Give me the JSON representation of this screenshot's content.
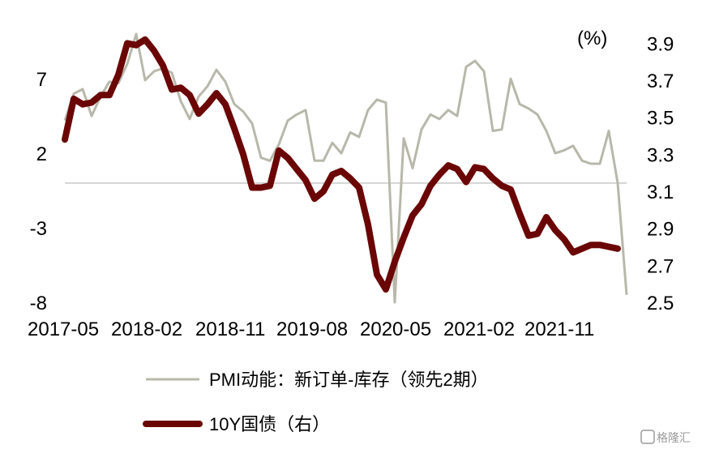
{
  "chart_data": {
    "type": "line",
    "unit_label": "(%)",
    "x_ticks": [
      "2017-05",
      "2018-02",
      "2018-11",
      "2019-08",
      "2020-05",
      "2021-02",
      "2021-11"
    ],
    "left_axis": {
      "ylim": [
        -8,
        10
      ],
      "ticks": [
        "7",
        "2",
        "-3",
        "-8"
      ]
    },
    "right_axis": {
      "ylim": [
        2.5,
        3.95
      ],
      "ticks": [
        "3.9",
        "3.7",
        "3.5",
        "3.3",
        "3.1",
        "2.9",
        "2.7",
        "2.5"
      ]
    },
    "baseline_value_left": 0,
    "series": [
      {
        "name": "PMI动能：新订单-库存（领先2期）",
        "axis": "left",
        "color": "#b8b8aa",
        "values": [
          4.2,
          6.0,
          6.3,
          4.5,
          5.8,
          6.8,
          6.7,
          8.0,
          10.0,
          6.9,
          7.5,
          7.7,
          7.4,
          5.5,
          4.3,
          5.8,
          6.5,
          7.6,
          6.8,
          5.3,
          4.8,
          4.0,
          1.7,
          1.5,
          2.6,
          4.2,
          4.6,
          4.9,
          1.5,
          1.5,
          2.7,
          2.0,
          3.4,
          3.1,
          4.9,
          5.6,
          5.4,
          -8.0,
          3.0,
          1.0,
          3.6,
          4.6,
          4.3,
          4.9,
          4.5,
          7.8,
          8.2,
          7.5,
          3.5,
          3.6,
          7.0,
          5.3,
          5.0,
          4.6,
          3.5,
          2.0,
          2.2,
          2.5,
          1.5,
          1.3,
          1.3,
          3.5,
          0,
          -7.5
        ]
      },
      {
        "name": "10Y国债（右）",
        "axis": "right",
        "color": "#6b0606",
        "values": [
          3.38,
          3.6,
          3.57,
          3.58,
          3.62,
          3.62,
          3.73,
          3.9,
          3.89,
          3.92,
          3.86,
          3.78,
          3.65,
          3.66,
          3.62,
          3.52,
          3.57,
          3.63,
          3.57,
          3.44,
          3.3,
          3.12,
          3.12,
          3.13,
          3.32,
          3.28,
          3.22,
          3.16,
          3.06,
          3.1,
          3.19,
          3.21,
          3.17,
          3.12,
          2.92,
          2.65,
          2.57,
          2.72,
          2.85,
          2.97,
          3.03,
          3.13,
          3.19,
          3.24,
          3.22,
          3.15,
          3.23,
          3.22,
          3.17,
          3.13,
          3.11,
          2.98,
          2.86,
          2.87,
          2.96,
          2.89,
          2.84,
          2.77,
          2.79,
          2.81,
          2.81,
          2.8,
          2.79
        ]
      }
    ]
  },
  "watermark": "格隆汇"
}
